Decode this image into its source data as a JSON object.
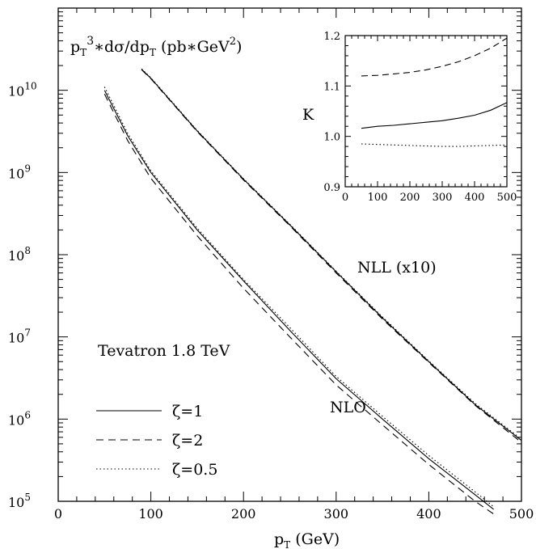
{
  "chart_data": [
    {
      "type": "line",
      "title": "",
      "ylabel": "pT^3*dσ/dpT (pb*GeV^2)",
      "xlabel": "pT (GeV)",
      "y_scale": "log",
      "xlim": [
        0,
        500
      ],
      "ylim": [
        100000,
        100000000000
      ],
      "x_ticks": [
        0,
        100,
        200,
        300,
        400,
        500
      ],
      "x_tick_labels": [
        "0",
        "100",
        "200",
        "300",
        "400",
        "500"
      ],
      "y_ticks": [
        100000,
        1000000,
        10000000,
        100000000,
        1000000000,
        10000000000
      ],
      "y_tick_base": "10",
      "y_tick_exponents": [
        "5",
        "6",
        "7",
        "8",
        "9",
        "10"
      ],
      "legend_position": "bottom-left",
      "series": [
        {
          "name": "ζ=1",
          "group": "NLO",
          "style": "solid",
          "x": [
            50,
            75,
            100,
            150,
            200,
            250,
            300,
            350,
            400,
            450,
            470
          ],
          "y": [
            10000000000,
            2800000000,
            1000000000,
            200000000,
            48000000,
            12000000,
            3100000,
            1000000,
            330000,
            120000,
            80000
          ]
        },
        {
          "name": "ζ=2",
          "group": "NLO",
          "style": "dashed",
          "x": [
            50,
            75,
            100,
            150,
            200,
            250,
            300,
            350,
            400,
            450,
            470
          ],
          "y": [
            9000000000,
            2450000000,
            850000000,
            170000000,
            39000000,
            10000000,
            2600000,
            850000,
            280000,
            100000,
            70000
          ]
        },
        {
          "name": "ζ=0.5",
          "group": "NLO",
          "style": "dotted",
          "x": [
            50,
            75,
            100,
            150,
            200,
            250,
            300,
            350,
            400,
            450,
            470
          ],
          "y": [
            11000000000,
            3000000000,
            1050000000,
            210000000,
            50000000,
            13000000,
            3300000,
            1080000,
            360000,
            130000,
            86000
          ]
        },
        {
          "name": "ζ=1",
          "group": "NLL (x10)",
          "style": "solid",
          "x": [
            90,
            100,
            150,
            200,
            250,
            300,
            350,
            400,
            450,
            500
          ],
          "y": [
            18000000000,
            14000000000,
            3200000000,
            830000000,
            230000000,
            62000000,
            17000000,
            5000000,
            1500000,
            550000
          ]
        },
        {
          "name": "ζ=2",
          "group": "NLL (x10)",
          "style": "dashed",
          "x": [
            90,
            100,
            150,
            200,
            250,
            300,
            350,
            400,
            450,
            500
          ],
          "y": [
            17800000000,
            13800000000,
            3150000000,
            810000000,
            225000000,
            60000000,
            16500000,
            4900000,
            1470000,
            520000
          ]
        },
        {
          "name": "ζ=0.5",
          "group": "NLL (x10)",
          "style": "dotted",
          "x": [
            90,
            100,
            150,
            200,
            250,
            300,
            350,
            400,
            450,
            500
          ],
          "y": [
            18200000000,
            14200000000,
            3250000000,
            840000000,
            235000000,
            63000000,
            17500000,
            5100000,
            1550000,
            570000
          ]
        }
      ],
      "annotations": [
        "Tevatron 1.8 TeV",
        "NLL (x10)",
        "NLO"
      ]
    },
    {
      "type": "line",
      "title": "",
      "ylabel": "K",
      "xlabel": "",
      "xlim": [
        0,
        500
      ],
      "ylim": [
        0.9,
        1.2
      ],
      "x_ticks": [
        0,
        100,
        200,
        300,
        400,
        500
      ],
      "x_tick_labels": [
        "0",
        "100",
        "200",
        "300",
        "400",
        "500"
      ],
      "y_ticks": [
        0.9,
        1.0,
        1.1,
        1.2
      ],
      "y_tick_labels": [
        "0.9",
        "1.0",
        "1.1",
        "1.2"
      ],
      "series": [
        {
          "name": "ζ=1",
          "style": "solid",
          "x": [
            50,
            100,
            150,
            200,
            250,
            300,
            350,
            400,
            450,
            500
          ],
          "y": [
            1.016,
            1.02,
            1.022,
            1.025,
            1.028,
            1.031,
            1.036,
            1.042,
            1.052,
            1.067
          ]
        },
        {
          "name": "ζ=2",
          "style": "dashed",
          "x": [
            50,
            100,
            150,
            200,
            250,
            300,
            350,
            400,
            450,
            500
          ],
          "y": [
            1.12,
            1.121,
            1.124,
            1.127,
            1.132,
            1.139,
            1.148,
            1.16,
            1.175,
            1.195
          ]
        },
        {
          "name": "ζ=0.5",
          "style": "dotted",
          "x": [
            50,
            100,
            150,
            200,
            250,
            300,
            350,
            400,
            450,
            500
          ],
          "y": [
            0.985,
            0.984,
            0.983,
            0.982,
            0.981,
            0.98,
            0.98,
            0.981,
            0.982,
            0.983
          ]
        }
      ]
    }
  ],
  "axis_text": {
    "y_title_main": "p",
    "y_title_sub": "T",
    "y_title_sup": "3",
    "y_title_rest": "∗dσ/dp",
    "y_title_sub2": "T",
    "y_title_units": " (pb∗GeV",
    "y_title_units_sup": "2",
    "y_title_close": ")",
    "x_title_main": "p",
    "x_title_sub": "T",
    "x_title_rest": " (GeV)",
    "inset_ylabel": "K"
  },
  "annotations": {
    "tevatron": "Tevatron 1.8 TeV",
    "nll": "NLL (x10)",
    "nlo": "NLO"
  },
  "legend": {
    "items": [
      {
        "label": "ζ=1",
        "style": "solid"
      },
      {
        "label": "ζ=2",
        "style": "dashed"
      },
      {
        "label": "ζ=0.5",
        "style": "dotted"
      }
    ]
  }
}
